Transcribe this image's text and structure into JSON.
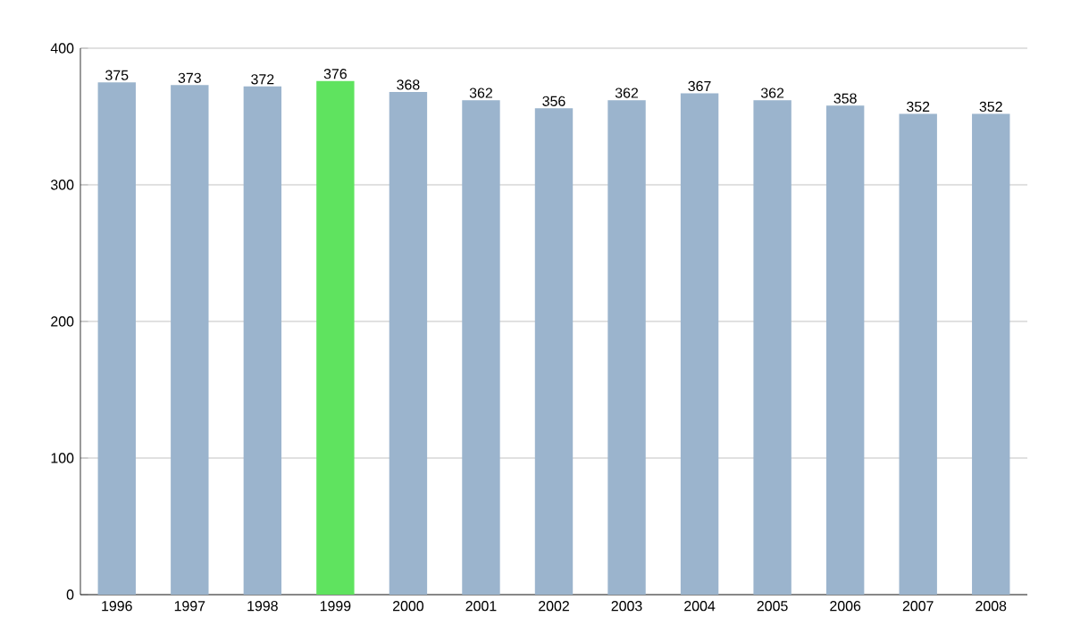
{
  "chart_data": {
    "type": "bar",
    "categories": [
      "1996",
      "1997",
      "1998",
      "1999",
      "2000",
      "2001",
      "2002",
      "2003",
      "2004",
      "2005",
      "2006",
      "2007",
      "2008"
    ],
    "values": [
      375,
      373,
      372,
      376,
      368,
      362,
      356,
      362,
      367,
      362,
      358,
      352,
      352
    ],
    "colors": [
      "#9bb4cd",
      "#9bb4cd",
      "#9bb4cd",
      "#5fe35f",
      "#9bb4cd",
      "#9bb4cd",
      "#9bb4cd",
      "#9bb4cd",
      "#9bb4cd",
      "#9bb4cd",
      "#9bb4cd",
      "#9bb4cd",
      "#9bb4cd"
    ],
    "ylim": [
      0,
      400
    ],
    "yticks": [
      0,
      100,
      200,
      300,
      400
    ],
    "grid": "y",
    "data_labels": true
  }
}
